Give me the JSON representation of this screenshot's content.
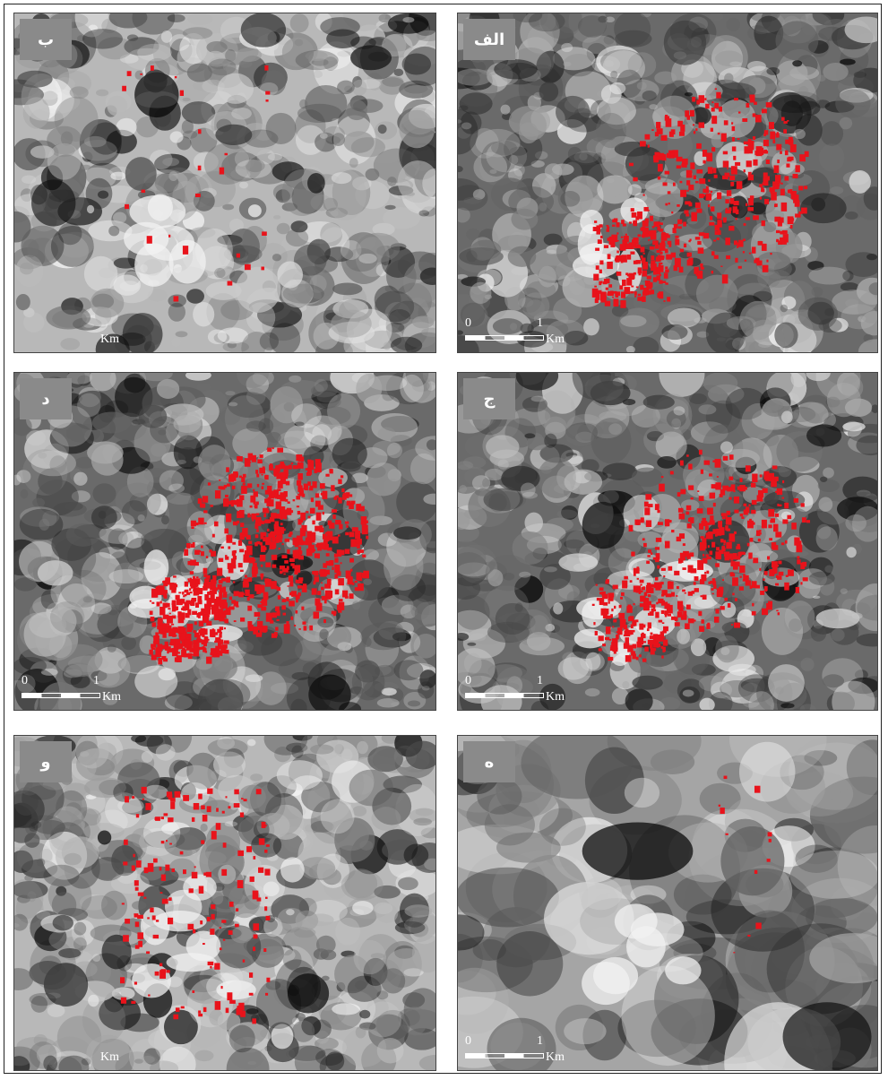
{
  "panels": [
    {
      "id": "b",
      "label": "ب",
      "tone": "light",
      "red": "low",
      "zero": "",
      "one": "",
      "km": "Km"
    },
    {
      "id": "alef",
      "label": "الف",
      "tone": "dark",
      "red": "high",
      "zero": "0",
      "one": "1",
      "km": "Km"
    },
    {
      "id": "dal",
      "label": "د",
      "tone": "dark",
      "red": "veryhigh",
      "zero": "0",
      "one": "1",
      "km": "Km"
    },
    {
      "id": "jim",
      "label": "ج",
      "tone": "dark",
      "red": "high",
      "zero": "0",
      "one": "1",
      "km": "Km"
    },
    {
      "id": "vav",
      "label": "و",
      "tone": "light",
      "red": "mid",
      "zero": "",
      "one": "",
      "km": "Km"
    },
    {
      "id": "he",
      "label": "ه",
      "tone": "smooth",
      "red": "tiny",
      "zero": "0",
      "one": "1",
      "km": "Km"
    }
  ],
  "colors": {
    "highlight": "#e8131b",
    "dark": "#3a3a3a",
    "light": "#d9d9d9"
  }
}
